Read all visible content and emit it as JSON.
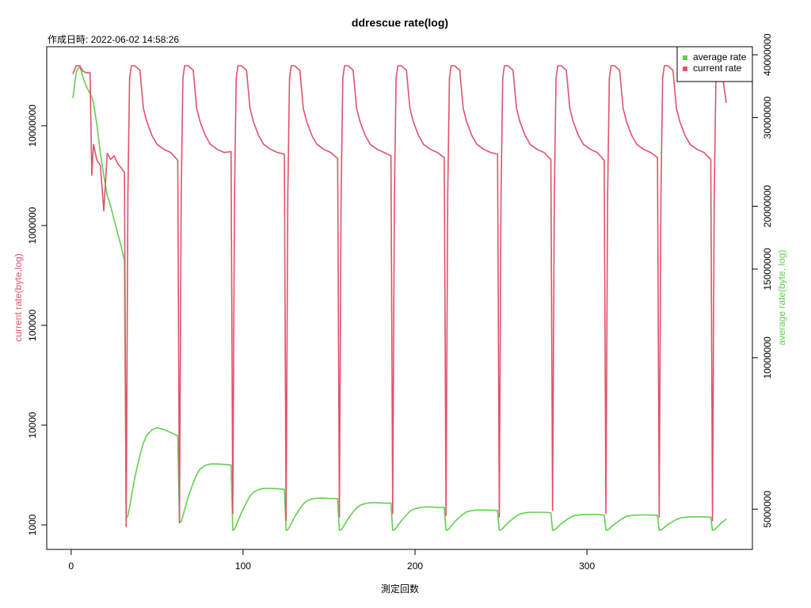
{
  "chart_data": {
    "type": "line",
    "title": "ddrescue rate(log)",
    "subtitle": "作成日時: 2022-06-02 14:58:26",
    "xlabel": "測定回数",
    "ylabel": "current rate(byte,log)",
    "y2label": "average rate(byte, log)",
    "log": true,
    "y2log": true,
    "legend": "topright",
    "xlim": [
      -14.2,
      396.2
    ],
    "xticks": [
      0,
      100,
      200,
      300
    ],
    "ylim": [
      568,
      62000000
    ],
    "yticks": [
      1000,
      10000,
      100000,
      1000000,
      10000000
    ],
    "y2lim": [
      4160000,
      41500000
    ],
    "y2ticks": [
      5000000,
      10000000,
      15000000,
      20000000,
      30000000,
      40000000
    ],
    "x": [
      1,
      3,
      5,
      7,
      9,
      11,
      12,
      13,
      15,
      17,
      19,
      21,
      23,
      25,
      27,
      29,
      31,
      32,
      33,
      34,
      35,
      37,
      40,
      42,
      44,
      47,
      50,
      54,
      58,
      62,
      63,
      64,
      65,
      66,
      68,
      71,
      73,
      75,
      78,
      81,
      85,
      89,
      93,
      94,
      95,
      96,
      97,
      99,
      102,
      104,
      106,
      109,
      112,
      116,
      120,
      124,
      125,
      126,
      127,
      128,
      130,
      133,
      135,
      137,
      140,
      143,
      147,
      151,
      155,
      156,
      157,
      158,
      159,
      161,
      164,
      166,
      168,
      171,
      174,
      178,
      182,
      186,
      187,
      188,
      189,
      190,
      192,
      195,
      197,
      199,
      202,
      205,
      209,
      213,
      217,
      218,
      219,
      220,
      221,
      223,
      226,
      228,
      230,
      233,
      236,
      240,
      244,
      248,
      249,
      250,
      251,
      252,
      254,
      257,
      259,
      261,
      264,
      267,
      271,
      275,
      279,
      280,
      281,
      282,
      283,
      285,
      288,
      290,
      292,
      295,
      298,
      302,
      306,
      310,
      311,
      312,
      313,
      314,
      316,
      319,
      321,
      323,
      326,
      329,
      333,
      337,
      341,
      342,
      343,
      344,
      345,
      347,
      350,
      352,
      354,
      357,
      360,
      364,
      368,
      372,
      373,
      374,
      375,
      376,
      378,
      381
    ],
    "series": [
      {
        "name": "average rate",
        "color": "#61D04F",
        "axis": "y2",
        "values": [
          32800000,
          37000000,
          38000000,
          36000000,
          34500000,
          33500000,
          33000000,
          32100000,
          29000000,
          25500000,
          23000000,
          21000000,
          20000000,
          18800000,
          17700000,
          16700000,
          15600000,
          4800000,
          4850000,
          5050000,
          5290000,
          5780000,
          6400000,
          6770000,
          7010000,
          7190000,
          7260000,
          7200000,
          7100000,
          7000000,
          4700000,
          4730000,
          4850000,
          4990000,
          5280000,
          5640000,
          5860000,
          6010000,
          6110000,
          6150000,
          6150000,
          6140000,
          6120000,
          4540000,
          4560000,
          4640000,
          4730000,
          4920000,
          5160000,
          5310000,
          5400000,
          5470000,
          5500000,
          5500000,
          5490000,
          5480000,
          4540000,
          4550000,
          4610000,
          4680000,
          4830000,
          5010000,
          5120000,
          5190000,
          5240000,
          5260000,
          5260000,
          5250000,
          5250000,
          4540000,
          4550000,
          4600000,
          4660000,
          4780000,
          4940000,
          5030000,
          5090000,
          5130000,
          5150000,
          5150000,
          5140000,
          5140000,
          4540000,
          4550000,
          4590000,
          4640000,
          4740000,
          4870000,
          4950000,
          5000000,
          5030000,
          5050000,
          5050000,
          5040000,
          5040000,
          4540000,
          4550000,
          4580000,
          4630000,
          4720000,
          4830000,
          4890000,
          4940000,
          4970000,
          4980000,
          4980000,
          4980000,
          4970000,
          4540000,
          4550000,
          4580000,
          4620000,
          4700000,
          4790000,
          4850000,
          4890000,
          4920000,
          4930000,
          4930000,
          4930000,
          4920000,
          4540000,
          4550000,
          4570000,
          4610000,
          4680000,
          4760000,
          4810000,
          4850000,
          4870000,
          4880000,
          4880000,
          4880000,
          4870000,
          4540000,
          4550000,
          4570000,
          4610000,
          4670000,
          4750000,
          4800000,
          4840000,
          4860000,
          4870000,
          4870000,
          4870000,
          4860000,
          4540000,
          4550000,
          4570000,
          4600000,
          4660000,
          4730000,
          4770000,
          4800000,
          4820000,
          4830000,
          4830000,
          4830000,
          4820000,
          4540000,
          4550000,
          4580000,
          4620000,
          4690000,
          4780000
        ]
      },
      {
        "name": "current rate",
        "color": "#DF536B",
        "values": [
          33000000,
          40000000,
          40000000,
          35000000,
          34000000,
          34000000,
          3200000,
          6500000,
          4500000,
          4000000,
          1400000,
          5300000,
          4600000,
          5000000,
          4200000,
          3800000,
          3400000,
          960,
          2000000,
          30000000,
          40000000,
          40000000,
          36000000,
          15000000,
          11000000,
          8000000,
          6500000,
          5800000,
          5400000,
          4500000,
          1050,
          2000000,
          30000000,
          40000000,
          40000000,
          36000000,
          15000000,
          11000000,
          8000000,
          6500000,
          5800000,
          5400000,
          5500000,
          1300,
          2000000,
          30000000,
          40000000,
          40000000,
          36000000,
          15000000,
          11000000,
          8000000,
          6500000,
          5800000,
          5400000,
          5200000,
          1100,
          2000000,
          30000000,
          40000000,
          40000000,
          36000000,
          15000000,
          11000000,
          8000000,
          6500000,
          5800000,
          5400000,
          4700000,
          1200,
          2000000,
          30000000,
          40000000,
          40000000,
          36000000,
          15000000,
          11000000,
          8000000,
          6500000,
          5800000,
          5400000,
          5000000,
          1300,
          2000000,
          30000000,
          40000000,
          40000000,
          36000000,
          15000000,
          11000000,
          8000000,
          6500000,
          5800000,
          5400000,
          4800000,
          1250,
          2000000,
          30000000,
          40000000,
          40000000,
          36000000,
          15000000,
          11000000,
          8000000,
          6500000,
          5800000,
          5400000,
          5200000,
          1200,
          2000000,
          30000000,
          40000000,
          40000000,
          36000000,
          15000000,
          11000000,
          8000000,
          6500000,
          5800000,
          5400000,
          4600000,
          1400,
          2000000,
          30000000,
          40000000,
          40000000,
          36000000,
          15000000,
          11000000,
          8000000,
          6500000,
          5800000,
          5400000,
          4500000,
          1300,
          2000000,
          30000000,
          40000000,
          40000000,
          36000000,
          15000000,
          11000000,
          8000000,
          6500000,
          5800000,
          5400000,
          4800000,
          1200,
          2000000,
          30000000,
          40000000,
          40000000,
          36000000,
          15000000,
          11000000,
          8000000,
          6500000,
          5800000,
          5400000,
          4600000,
          1100,
          2000000,
          30000000,
          40000000,
          40000000,
          17000000
        ]
      }
    ]
  }
}
